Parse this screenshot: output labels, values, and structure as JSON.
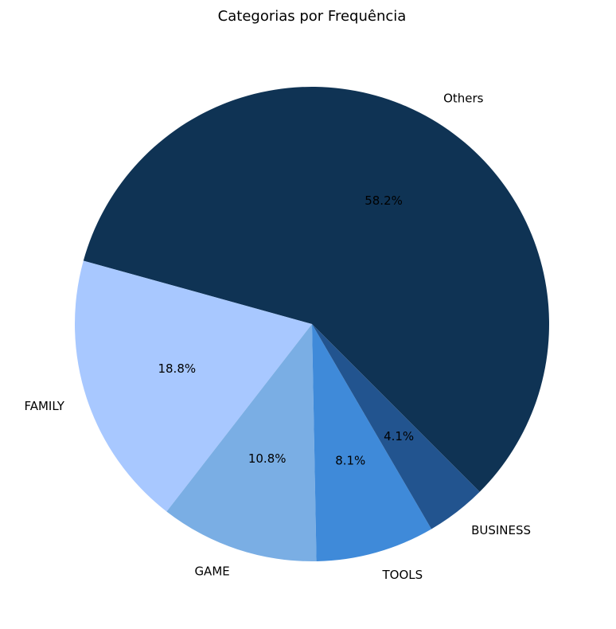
{
  "chart_data": {
    "type": "pie",
    "title": "Categorias por Frequência",
    "categories": [
      "Others",
      "FAMILY",
      "GAME",
      "TOOLS",
      "BUSINESS"
    ],
    "values": [
      58.2,
      18.8,
      10.8,
      8.1,
      4.1
    ],
    "percent_labels": [
      "58.2%",
      "18.8%",
      "10.8%",
      "8.1%",
      "4.1%"
    ],
    "colors": [
      "#0f3354",
      "#a8c8ff",
      "#7aaee4",
      "#3f8ad9",
      "#22548f"
    ],
    "start_angle_deg": -45,
    "direction": "counterclockwise"
  }
}
